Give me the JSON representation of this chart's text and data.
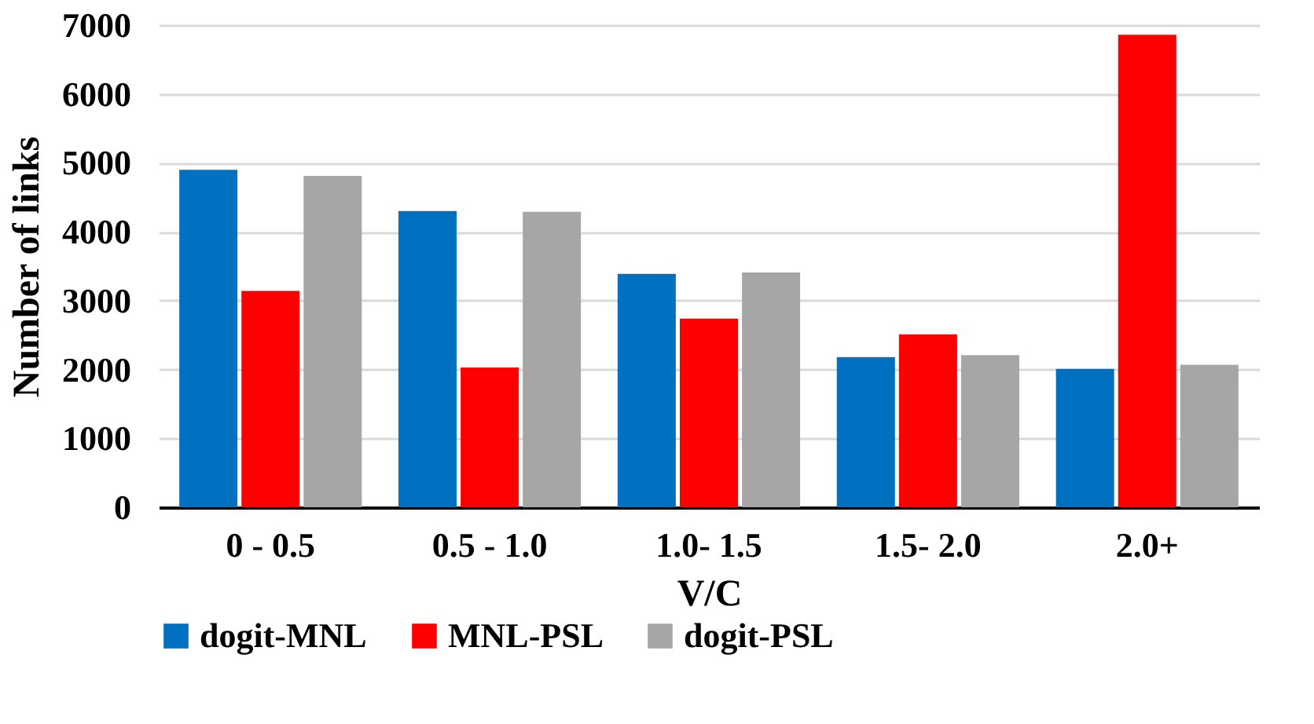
{
  "chart_data": {
    "type": "bar",
    "xlabel": "V/C",
    "ylabel": "Number of links",
    "categories": [
      "0 - 0.5",
      "0.5 - 1.0",
      "1.0- 1.5",
      "1.5- 2.0",
      "2.0+"
    ],
    "series": [
      {
        "name": "dogit-MNL",
        "color": "#0070c0",
        "values": [
          4900,
          4300,
          3390,
          2180,
          2010
        ]
      },
      {
        "name": "MNL-PSL",
        "color": "#ff0000",
        "values": [
          3140,
          2030,
          2740,
          2510,
          6860
        ]
      },
      {
        "name": "dogit-PSL",
        "color": "#a6a6a6",
        "values": [
          4810,
          4290,
          3410,
          2210,
          2070
        ]
      }
    ],
    "ylim": [
      0,
      7000
    ],
    "yticks": [
      0,
      1000,
      2000,
      3000,
      4000,
      5000,
      6000,
      7000
    ],
    "grid": "y",
    "legend": "bottom"
  }
}
